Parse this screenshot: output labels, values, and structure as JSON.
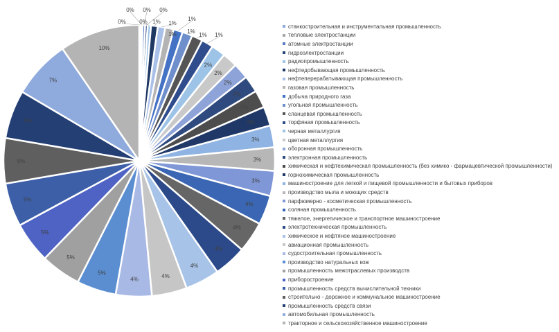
{
  "chart_data": {
    "type": "pie",
    "legend_position": "right",
    "series": [
      {
        "label": "станкостроительная и инструментальная промышленность",
        "value": 0.2,
        "display": "0%",
        "color": "#8FAADC"
      },
      {
        "label": "тепловые электростанции",
        "value": 0.2,
        "display": "0%",
        "color": "#A5A5A5"
      },
      {
        "label": "атомные электростанции",
        "value": 0.3,
        "display": "0%",
        "color": "#5B7DBF"
      },
      {
        "label": "гидроэлектростанции",
        "value": 0.3,
        "display": "0%",
        "color": "#264478"
      },
      {
        "label": "радиопромышленность",
        "value": 0.4,
        "display": "0%",
        "color": "#9DC3E6"
      },
      {
        "label": "нефтедобывающая промышленность",
        "value": 0.8,
        "display": "1%",
        "color": "#203864"
      },
      {
        "label": "нефтеперерабатывающая промышленность",
        "value": 0.9,
        "display": "1%",
        "color": "#A9C0E8"
      },
      {
        "label": "газовая промышленность",
        "value": 1.0,
        "display": "1%",
        "color": "#B4B4B4"
      },
      {
        "label": "добыча природного газа",
        "value": 1.1,
        "display": "1%",
        "color": "#4472C4"
      },
      {
        "label": "угольная промышленность",
        "value": 1.2,
        "display": "1%",
        "color": "#6E8FCB"
      },
      {
        "label": "сланцевая промышленность",
        "value": 1.3,
        "display": "1%",
        "color": "#555555"
      },
      {
        "label": "торфяная промышленность",
        "value": 1.4,
        "display": "1%",
        "color": "#2F4D8C"
      },
      {
        "label": "черная металлургия",
        "value": 1.7,
        "display": "2%",
        "color": "#9DC3E6"
      },
      {
        "label": "цветная металлургия",
        "value": 1.8,
        "display": "2%",
        "color": "#C9C9C9"
      },
      {
        "label": "оборонная промышленность",
        "value": 1.9,
        "display": "2%",
        "color": "#8EA4D8"
      },
      {
        "label": "электронная промышленность",
        "value": 2.0,
        "display": "2%",
        "color": "#2E4A7E"
      },
      {
        "label": "химическая и нефтехимическая промышленность (без химико - фармацевтической промышленности)",
        "value": 2.1,
        "display": "2%",
        "color": "#4D4D4D"
      },
      {
        "label": "горнохимическая промышленность",
        "value": 2.3,
        "display": "2%",
        "color": "#1F3868"
      },
      {
        "label": "машиностроение для легкой и пищевой промышленности и бытовых приборов",
        "value": 2.6,
        "display": "3%",
        "color": "#8FB4E3"
      },
      {
        "label": "производство мыла и моющих средств",
        "value": 2.8,
        "display": "3%",
        "color": "#B7B7B7"
      },
      {
        "label": "парфюмерно - косметическая промышленность",
        "value": 3.0,
        "display": "3%",
        "color": "#7F97D6"
      },
      {
        "label": "соляная промышленность",
        "value": 3.5,
        "display": "4%",
        "color": "#3A66B3"
      },
      {
        "label": "тяжелое, энергетическое и транспортное машиностроение",
        "value": 3.7,
        "display": "4%",
        "color": "#666666"
      },
      {
        "label": "электротехническая промышленность",
        "value": 3.9,
        "display": "4%",
        "color": "#2C4A8A"
      },
      {
        "label": "химическое и нефтяное машиностроение",
        "value": 4.1,
        "display": "4%",
        "color": "#A7C3E8"
      },
      {
        "label": "авиационная промышленность",
        "value": 4.2,
        "display": "4%",
        "color": "#C6C6C6"
      },
      {
        "label": "судостроительная промышленность",
        "value": 4.3,
        "display": "4%",
        "color": "#A9B9E6"
      },
      {
        "label": "производство натуральных кож",
        "value": 4.7,
        "display": "5%",
        "color": "#5A8ED1"
      },
      {
        "label": "промышленность межотраслевых производств",
        "value": 4.8,
        "display": "5%",
        "color": "#A0A0A0"
      },
      {
        "label": "приборостроение",
        "value": 4.9,
        "display": "5%",
        "color": "#4F63C4"
      },
      {
        "label": "промышленность средств вычислительной техники",
        "value": 5.2,
        "display": "5%",
        "color": "#3D5FA8"
      },
      {
        "label": "строительно - дорожное и коммунальное машиностроение",
        "value": 5.4,
        "display": "5%",
        "color": "#5F5F5F"
      },
      {
        "label": "промышленность средств связи",
        "value": 5.8,
        "display": "6%",
        "color": "#243F74"
      },
      {
        "label": "автомобильная промышленность",
        "value": 7.0,
        "display": "7%",
        "color": "#8FAADC"
      },
      {
        "label": "тракторное и сельскохозяйственное машиностроение",
        "value": 9.6,
        "display": "10%",
        "color": "#B4B4B4"
      }
    ]
  }
}
